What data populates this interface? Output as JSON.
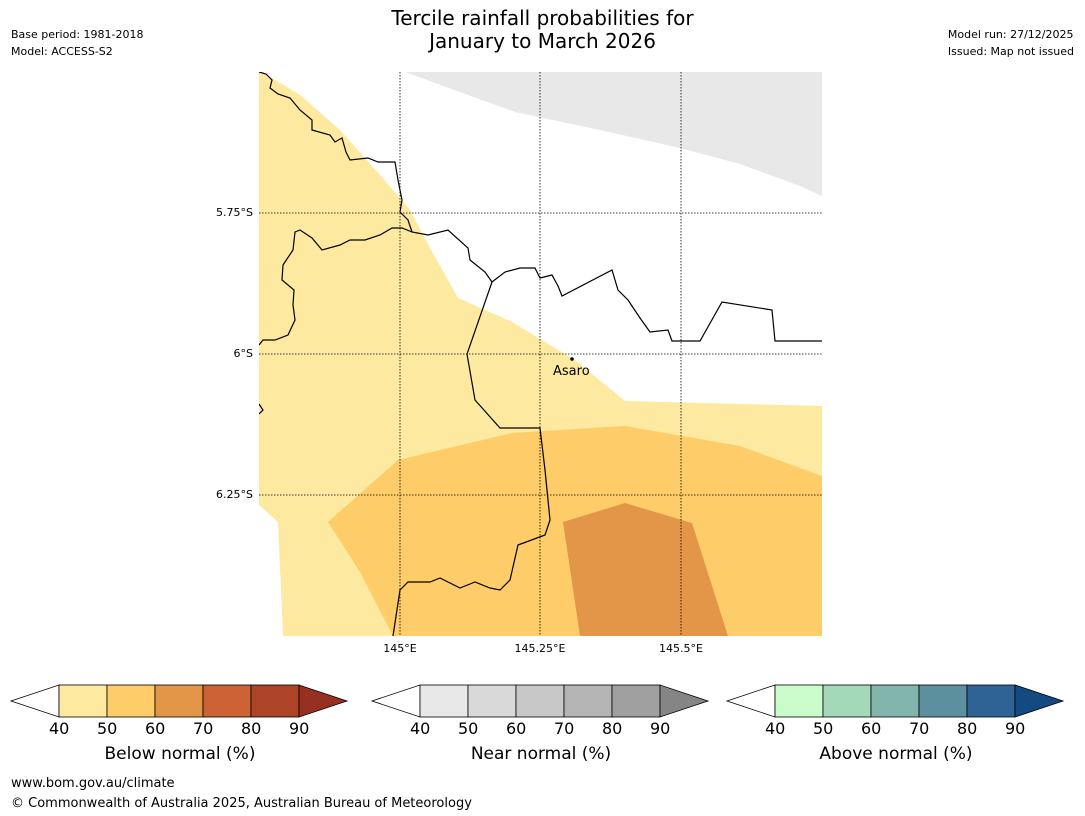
{
  "header": {
    "title_line1": "Tercile rainfall probabilities for",
    "title_line2": "January to March 2026",
    "base_period": "Base period: 1981-2018",
    "model": "Model: ACCESS-S2",
    "model_run": "Model run: 27/12/2025",
    "issued": "Issued: Map not issued"
  },
  "map": {
    "lat_labels": [
      "5.75°S",
      "6°S",
      "6.25°S"
    ],
    "lon_labels": [
      "145°E",
      "145.25°E",
      "145.5°E"
    ],
    "place_label": "Asaro"
  },
  "colorbars": [
    {
      "title": "Below normal (%)",
      "ticks": [
        "40",
        "50",
        "60",
        "70",
        "80",
        "90"
      ],
      "colors": [
        "#ffffff",
        "#fdeaa0",
        "#fecc68",
        "#e39647",
        "#cd6235",
        "#ad4428",
        "#973021"
      ]
    },
    {
      "title": "Near normal (%)",
      "ticks": [
        "40",
        "50",
        "60",
        "70",
        "80",
        "90"
      ],
      "colors": [
        "#ffffff",
        "#e8e8e8",
        "#d9d9d9",
        "#c8c8c8",
        "#b5b5b5",
        "#a0a0a0",
        "#858585"
      ]
    },
    {
      "title": "Above normal (%)",
      "ticks": [
        "40",
        "50",
        "60",
        "70",
        "80",
        "90"
      ],
      "colors": [
        "#ffffff",
        "#c9fcca",
        "#a3d8b8",
        "#82b6ad",
        "#5c909e",
        "#306395",
        "#134a82"
      ]
    }
  ],
  "footer": {
    "website": "www.bom.gov.au/climate",
    "copyright": "© Commonwealth of Australia 2025, Australian Bureau of Meteorology"
  }
}
